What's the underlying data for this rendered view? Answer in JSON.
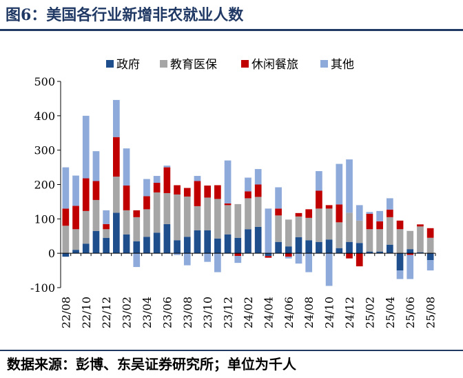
{
  "figure": {
    "title": "图6：美国各行业新增非农就业人数",
    "source": "数据来源：彭博、东吴证券研究所；单位为千人"
  },
  "chart_data": {
    "type": "bar",
    "stacked": true,
    "title": "",
    "xlabel": "",
    "ylabel": "",
    "ylim": [
      -100,
      500
    ],
    "yticks": [
      -100,
      0,
      100,
      200,
      300,
      400,
      500
    ],
    "grid": false,
    "legend_position": "top",
    "categories": [
      "22/08",
      "22/09",
      "22/10",
      "22/11",
      "22/12",
      "23/01",
      "23/02",
      "23/03",
      "23/04",
      "23/05",
      "23/06",
      "23/07",
      "23/08",
      "23/09",
      "23/10",
      "23/11",
      "23/12",
      "24/01",
      "24/02",
      "24/03",
      "24/04",
      "24/05",
      "24/06",
      "24/07",
      "24/08",
      "24/09",
      "24/10",
      "24/11",
      "24/12",
      "25/01",
      "25/02",
      "25/03",
      "25/04",
      "25/05",
      "25/06",
      "25/07",
      "25/08"
    ],
    "x_tick_labels": [
      "22/08",
      "22/10",
      "22/12",
      "23/02",
      "23/04",
      "23/06",
      "23/08",
      "23/10",
      "23/12",
      "24/02",
      "24/04",
      "24/06",
      "24/08",
      "24/10",
      "24/12",
      "25/02",
      "25/04",
      "25/06",
      "25/08"
    ],
    "series": [
      {
        "name": "政府",
        "color": "#1f4e8c",
        "values": [
          -10,
          10,
          28,
          65,
          45,
          118,
          55,
          35,
          48,
          60,
          85,
          38,
          48,
          67,
          67,
          43,
          55,
          45,
          70,
          77,
          -8,
          33,
          20,
          47,
          38,
          33,
          40,
          15,
          33,
          30,
          5,
          5,
          25,
          -50,
          12,
          3,
          -20
        ]
      },
      {
        "name": "教育医保",
        "color": "#a6a6a6",
        "values": [
          80,
          60,
          95,
          90,
          25,
          105,
          70,
          70,
          80,
          117,
          90,
          133,
          117,
          70,
          95,
          115,
          85,
          98,
          90,
          87,
          0,
          77,
          78,
          60,
          65,
          97,
          90,
          75,
          85,
          65,
          65,
          65,
          80,
          70,
          53,
          75,
          45
        ]
      },
      {
        "name": "休闲餐旅",
        "color": "#c00000",
        "values": [
          50,
          68,
          95,
          55,
          15,
          115,
          72,
          20,
          38,
          28,
          75,
          27,
          25,
          73,
          35,
          40,
          5,
          -8,
          20,
          36,
          -5,
          20,
          -10,
          10,
          25,
          52,
          10,
          52,
          -15,
          -38,
          45,
          23,
          22,
          25,
          -5,
          6,
          28
        ]
      },
      {
        "name": "其他",
        "color": "#8eaadb",
        "values": [
          120,
          88,
          182,
          87,
          40,
          108,
          108,
          -40,
          50,
          20,
          5,
          -5,
          -35,
          15,
          -25,
          -55,
          125,
          -20,
          40,
          45,
          130,
          62,
          -5,
          -30,
          -55,
          57,
          -95,
          118,
          155,
          45,
          5,
          30,
          33,
          -25,
          -70,
          0,
          -30
        ]
      }
    ]
  }
}
